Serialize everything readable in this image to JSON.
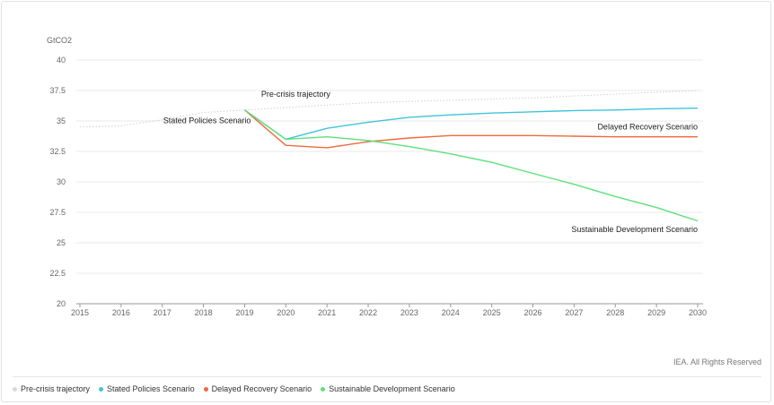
{
  "chart_data": {
    "type": "line",
    "unit_label": "GtCO2",
    "x": [
      2015,
      2016,
      2017,
      2018,
      2019,
      2020,
      2021,
      2022,
      2023,
      2024,
      2025,
      2026,
      2027,
      2028,
      2029,
      2030
    ],
    "ylim": [
      20,
      40
    ],
    "yticks": [
      20,
      22.5,
      25,
      27.5,
      30,
      32.5,
      35,
      37.5,
      40
    ],
    "grid": true,
    "legend_position": "bottom",
    "series": [
      {
        "name": "Pre-crisis trajectory",
        "color": "#cfcfcf",
        "style": "dotted",
        "points": [
          [
            2015,
            34.5
          ],
          [
            2016,
            34.6
          ],
          [
            2017,
            35.1
          ],
          [
            2018,
            35.7
          ],
          [
            2019,
            35.9
          ],
          [
            2020,
            36.1
          ],
          [
            2021,
            36.3
          ],
          [
            2022,
            36.5
          ],
          [
            2023,
            36.6
          ],
          [
            2024,
            36.7
          ],
          [
            2025,
            36.8
          ],
          [
            2026,
            36.9
          ],
          [
            2027,
            37.05
          ],
          [
            2028,
            37.2
          ],
          [
            2029,
            37.35
          ],
          [
            2030,
            37.5
          ]
        ]
      },
      {
        "name": "Stated Policies Scenario",
        "color": "#3fc4dc",
        "style": "solid",
        "points": [
          [
            2019,
            35.9
          ],
          [
            2020,
            33.5
          ],
          [
            2021,
            34.4
          ],
          [
            2022,
            34.9
          ],
          [
            2023,
            35.3
          ],
          [
            2024,
            35.5
          ],
          [
            2025,
            35.65
          ],
          [
            2026,
            35.75
          ],
          [
            2027,
            35.85
          ],
          [
            2028,
            35.9
          ],
          [
            2029,
            36.0
          ],
          [
            2030,
            36.05
          ]
        ]
      },
      {
        "name": "Delayed Recovery Scenario",
        "color": "#ee6a3e",
        "style": "solid",
        "points": [
          [
            2019,
            35.9
          ],
          [
            2020,
            33.0
          ],
          [
            2021,
            32.8
          ],
          [
            2022,
            33.3
          ],
          [
            2023,
            33.6
          ],
          [
            2024,
            33.8
          ],
          [
            2025,
            33.8
          ],
          [
            2026,
            33.8
          ],
          [
            2027,
            33.75
          ],
          [
            2028,
            33.7
          ],
          [
            2029,
            33.7
          ],
          [
            2030,
            33.7
          ]
        ]
      },
      {
        "name": "Sustainable Development Scenario",
        "color": "#5de07a",
        "style": "solid",
        "points": [
          [
            2019,
            35.9
          ],
          [
            2020,
            33.5
          ],
          [
            2021,
            33.7
          ],
          [
            2022,
            33.4
          ],
          [
            2023,
            32.9
          ],
          [
            2024,
            32.3
          ],
          [
            2025,
            31.6
          ],
          [
            2026,
            30.7
          ],
          [
            2027,
            29.8
          ],
          [
            2028,
            28.8
          ],
          [
            2029,
            27.9
          ],
          [
            2030,
            26.8
          ]
        ]
      }
    ],
    "annotations": [
      {
        "text": "Pre-crisis trajectory",
        "x": 2019.4,
        "y": 37.0,
        "anchor": "start"
      },
      {
        "text": "Stated Policies Scenario",
        "x": 2019.15,
        "y": 34.8,
        "anchor": "end"
      },
      {
        "text": "Delayed Recovery Scenario",
        "x": 2030,
        "y": 34.3,
        "anchor": "end"
      },
      {
        "text": "Sustainable Development Scenario",
        "x": 2030,
        "y": 25.9,
        "anchor": "end"
      }
    ]
  },
  "footer": {
    "credit": "IEA. All Rights Reserved"
  },
  "legend": {
    "items": [
      {
        "label": "Pre-crisis trajectory",
        "color": "#d9d9d9"
      },
      {
        "label": "Stated Policies Scenario",
        "color": "#3fc4dc"
      },
      {
        "label": "Delayed Recovery Scenario",
        "color": "#ee6a3e"
      },
      {
        "label": "Sustainable Development Scenario",
        "color": "#5de07a"
      }
    ]
  }
}
